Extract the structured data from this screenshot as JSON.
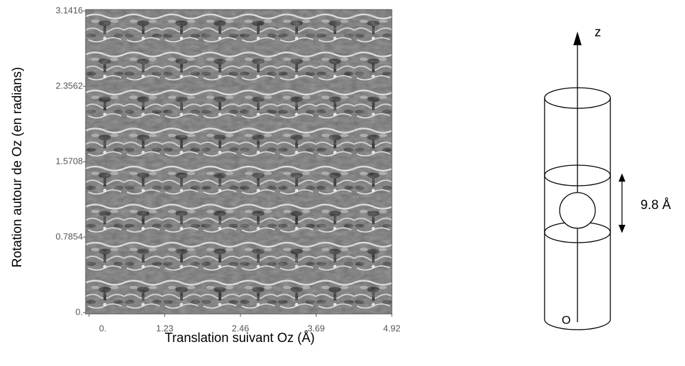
{
  "figure": {
    "plot": {
      "ylabel": "Rotation autour de Oz (en radians)",
      "xlabel": "Translation suivant Oz (Å)",
      "yticks": [
        "3.1416",
        "2.3562",
        "1.5708",
        "0.7854",
        "0."
      ],
      "xticks": [
        "0.",
        "1.23",
        "2.46",
        "3.69",
        "4.92"
      ]
    },
    "diagram": {
      "axis_label": "z",
      "origin_label": "O",
      "spacing_label": "9.8 Å"
    }
  }
}
